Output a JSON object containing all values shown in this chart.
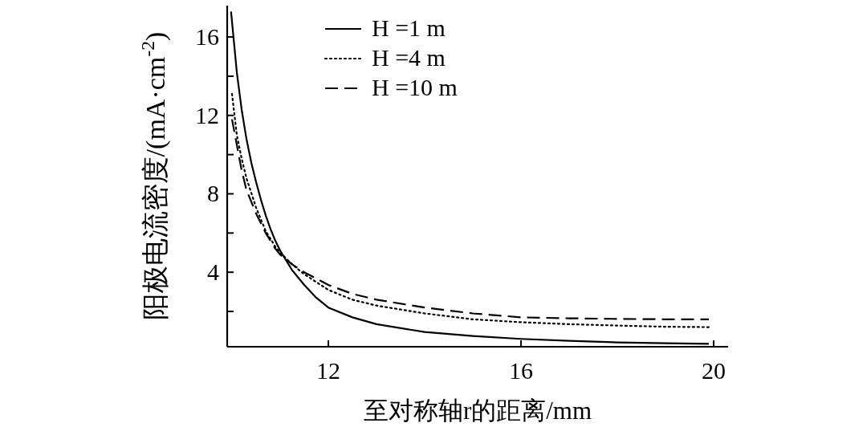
{
  "chart_data": {
    "type": "line",
    "xlabel": "至对称轴r的距离/mm",
    "ylabel": "阳极电流密度/(mA·cm$^{-2}$)",
    "xlim": [
      9.9,
      20.3
    ],
    "ylim": [
      0.2,
      17.6
    ],
    "xticks": [
      12,
      16,
      20
    ],
    "yticks": [
      {
        "value": 2,
        "label": null
      },
      4,
      {
        "value": 6,
        "label": null
      },
      8,
      {
        "value": 10,
        "label": null
      },
      12,
      {
        "value": 14,
        "label": null
      },
      16
    ],
    "legend": "top",
    "grid": false,
    "marker": "none",
    "series": [
      {
        "name": "H =1 m",
        "color": "#000000",
        "line_style": "solid",
        "x": [
          9.98,
          10.05,
          10.1,
          10.2,
          10.3,
          10.4,
          10.5,
          10.6,
          10.7,
          10.8,
          10.9,
          11,
          11.25,
          11.5,
          11.75,
          12,
          12.5,
          13,
          14,
          15,
          16,
          17,
          18,
          19,
          19.9
        ],
        "values": [
          17.3,
          15.5,
          14.2,
          12.3,
          10.8,
          9.6,
          8.6,
          7.7,
          6.9,
          6.2,
          5.6,
          5.1,
          4.1,
          3.35,
          2.7,
          2.2,
          1.7,
          1.35,
          0.95,
          0.75,
          0.6,
          0.5,
          0.42,
          0.38,
          0.35
        ]
      },
      {
        "name": "H =4 m",
        "color": "#000000",
        "line_style": "dotted",
        "x": [
          10.0,
          10.1,
          10.2,
          10.3,
          10.5,
          10.7,
          10.9,
          11,
          11.25,
          11.5,
          12,
          12.5,
          13,
          14,
          15,
          16,
          17,
          18,
          19,
          19.9
        ],
        "values": [
          13.1,
          11,
          9.8,
          8.8,
          7.3,
          6.1,
          5.3,
          5.0,
          4.4,
          3.9,
          3.1,
          2.6,
          2.3,
          1.9,
          1.6,
          1.45,
          1.35,
          1.28,
          1.22,
          1.2
        ]
      },
      {
        "name": "H =10 m",
        "color": "#000000",
        "line_style": "dashed",
        "x": [
          10.0,
          10.1,
          10.2,
          10.3,
          10.5,
          10.7,
          10.9,
          11,
          11.25,
          11.5,
          12,
          12.5,
          13,
          14,
          15,
          16,
          17,
          18,
          19,
          19.9
        ],
        "values": [
          11.8,
          10.5,
          9.2,
          8.2,
          7.0,
          6.0,
          5.2,
          4.9,
          4.4,
          4.0,
          3.35,
          2.9,
          2.6,
          2.2,
          1.9,
          1.7,
          1.65,
          1.62,
          1.6,
          1.6
        ]
      }
    ]
  }
}
